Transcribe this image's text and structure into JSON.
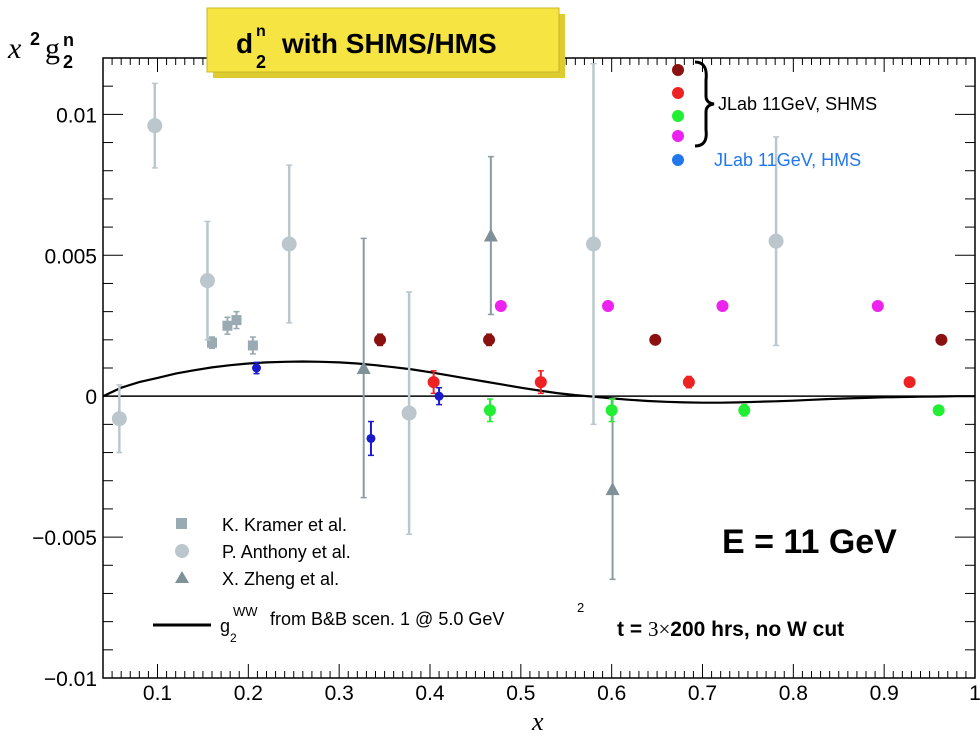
{
  "chart_data": {
    "type": "scatter",
    "title": "d",
    "title_sub": "2",
    "title_sup": "n",
    "title_rest": "with SHMS/HMS",
    "ylabel_main": "x",
    "ylabel_sup": "2",
    "ylabel_g": "g",
    "ylabel_g_sub": "2",
    "ylabel_g_sup": "n",
    "xlabel": "x",
    "xlim": [
      0.04,
      1.0
    ],
    "ylim": [
      -0.01,
      0.012
    ],
    "xticks": [
      0.1,
      0.2,
      0.3,
      0.4,
      0.5,
      0.6,
      0.7,
      0.8,
      0.9,
      1
    ],
    "xtick_labels": [
      "0.1",
      "0.2",
      "0.3",
      "0.4",
      "0.5",
      "0.6",
      "0.7",
      "0.8",
      "0.9",
      "1"
    ],
    "yticks": [
      -0.01,
      -0.005,
      0,
      0.005,
      0.01
    ],
    "ytick_labels": [
      "−0.01",
      "−0.005",
      "0",
      "0.005",
      "0.01"
    ],
    "energy_label": "E = 11 GeV",
    "time_label_a": "t = ",
    "time_label_b": "3×",
    "time_label_c": "200 hrs, no W cut",
    "colors": {
      "grey": "#9aaab2",
      "grey_dark": "#7f9099",
      "darkred": "#8b1010",
      "red": "#ee2222",
      "green": "#22ee33",
      "magenta": "#ee22ee",
      "blue": "#1a1acc",
      "hms_legend": "#2277ee",
      "title_box": "#f5e442"
    },
    "series": [
      {
        "name": "K. Kramer et al.",
        "marker": "square",
        "color": "#9aaab2",
        "points": [
          {
            "x": 0.16,
            "y": 0.0019,
            "err": 0.0002
          },
          {
            "x": 0.177,
            "y": 0.0025,
            "err": 0.0003
          },
          {
            "x": 0.187,
            "y": 0.0027,
            "err": 0.0003
          },
          {
            "x": 0.205,
            "y": 0.0018,
            "err": 0.0003
          }
        ]
      },
      {
        "name": "P. Anthony et al.",
        "marker": "circle",
        "color": "#bbc7cd",
        "errcolor": "#bbc7cd",
        "points": [
          {
            "x": 0.058,
            "y": -0.0008,
            "err": 0.0012
          },
          {
            "x": 0.097,
            "y": 0.0096,
            "err": 0.0015
          },
          {
            "x": 0.155,
            "y": 0.0041,
            "err": 0.0021
          },
          {
            "x": 0.245,
            "y": 0.0054,
            "err": 0.0028
          },
          {
            "x": 0.377,
            "y": -0.0006,
            "err": 0.0043
          },
          {
            "x": 0.58,
            "y": 0.0054,
            "err": 0.0064
          },
          {
            "x": 0.781,
            "y": 0.0055,
            "err": 0.0037
          }
        ]
      },
      {
        "name": "X. Zheng et al.",
        "marker": "triangle",
        "color": "#7f9099",
        "errcolor": "#8a9aa3",
        "points": [
          {
            "x": 0.327,
            "y": 0.001,
            "err": 0.0046
          },
          {
            "x": 0.467,
            "y": 0.0057,
            "err": 0.0028
          },
          {
            "x": 0.601,
            "y": -0.0033,
            "err": 0.0032
          }
        ]
      },
      {
        "name": "JLab 11GeV, SHMS",
        "marker": "circle",
        "color": "#8b1010",
        "points": [
          {
            "x": 0.345,
            "y": 0.002,
            "err": 0.0002
          },
          {
            "x": 0.465,
            "y": 0.002,
            "err": 0.0002
          },
          {
            "x": 0.648,
            "y": 0.002,
            "err": 0.0
          },
          {
            "x": 0.963,
            "y": 0.002,
            "err": 0.0
          }
        ]
      },
      {
        "name": "",
        "marker": "circle",
        "color": "#ee2222",
        "points": [
          {
            "x": 0.404,
            "y": 0.0005,
            "err": 0.0004
          },
          {
            "x": 0.522,
            "y": 0.0005,
            "err": 0.0004
          },
          {
            "x": 0.685,
            "y": 0.0005,
            "err": 0.0002
          },
          {
            "x": 0.928,
            "y": 0.0005,
            "err": 0.0
          }
        ]
      },
      {
        "name": "",
        "marker": "circle",
        "color": "#22ee33",
        "points": [
          {
            "x": 0.466,
            "y": -0.0005,
            "err": 0.0004
          },
          {
            "x": 0.6,
            "y": -0.0005,
            "err": 0.0004
          },
          {
            "x": 0.746,
            "y": -0.0005,
            "err": 0.0002
          },
          {
            "x": 0.96,
            "y": -0.0005,
            "err": 0.0
          }
        ]
      },
      {
        "name": "",
        "marker": "circle",
        "color": "#ee22ee",
        "points": [
          {
            "x": 0.478,
            "y": 0.0032,
            "err": 0.0
          },
          {
            "x": 0.596,
            "y": 0.0032,
            "err": 0.0
          },
          {
            "x": 0.722,
            "y": 0.0032,
            "err": 0.0
          },
          {
            "x": 0.893,
            "y": 0.0032,
            "err": 0.0
          }
        ]
      },
      {
        "name": "JLab 11GeV, HMS",
        "marker": "circle",
        "color": "#1a1acc",
        "points": [
          {
            "x": 0.209,
            "y": 0.001,
            "err": 0.0002
          },
          {
            "x": 0.335,
            "y": -0.0015,
            "err": 0.0006
          },
          {
            "x": 0.41,
            "y": 0.0,
            "err": 0.0003
          }
        ]
      }
    ],
    "curve": {
      "name": "from B&B scen. 1 @ 5.0 GeV",
      "name_g": "g",
      "name_g_sub": "2",
      "name_g_sup": "WW",
      "name_sup": "2",
      "x": [
        0.04,
        0.06,
        0.08,
        0.1,
        0.12,
        0.14,
        0.16,
        0.18,
        0.2,
        0.22,
        0.24,
        0.26,
        0.28,
        0.3,
        0.32,
        0.34,
        0.36,
        0.38,
        0.4,
        0.42,
        0.44,
        0.46,
        0.48,
        0.5,
        0.52,
        0.54,
        0.56,
        0.58,
        0.6,
        0.62,
        0.64,
        0.66,
        0.68,
        0.7,
        0.72,
        0.74,
        0.76,
        0.78,
        0.8,
        0.82,
        0.84,
        0.86,
        0.88,
        0.9,
        0.92,
        0.94,
        0.96,
        0.98,
        1.0
      ],
      "y": [
        0.0,
        0.0003,
        0.0005,
        0.00065,
        0.0008,
        0.00092,
        0.00102,
        0.0011,
        0.00116,
        0.0012,
        0.00122,
        0.00123,
        0.00122,
        0.0012,
        0.00116,
        0.0011,
        0.00103,
        0.00095,
        0.00085,
        0.00074,
        0.00063,
        0.00052,
        0.00041,
        0.0003,
        0.0002,
        0.00011,
        4e-05,
        -2e-05,
        -8e-05,
        -0.00013,
        -0.00017,
        -0.0002,
        -0.00022,
        -0.00023,
        -0.00023,
        -0.00022,
        -0.0002,
        -0.00018,
        -0.00016,
        -0.00013,
        -0.0001,
        -8e-05,
        -6e-05,
        -4e-05,
        -3e-05,
        -2e-05,
        -1e-05,
        0.0,
        0.0
      ]
    },
    "legend_left": [
      {
        "label": "K. Kramer et al.",
        "marker": "square"
      },
      {
        "label": "P. Anthony et al.",
        "marker": "circle"
      },
      {
        "label": "X. Zheng et al.",
        "marker": "triangle"
      }
    ],
    "legend_right": {
      "shms_label": "JLab 11GeV, SHMS",
      "hms_label": "JLab 11GeV, HMS"
    }
  }
}
